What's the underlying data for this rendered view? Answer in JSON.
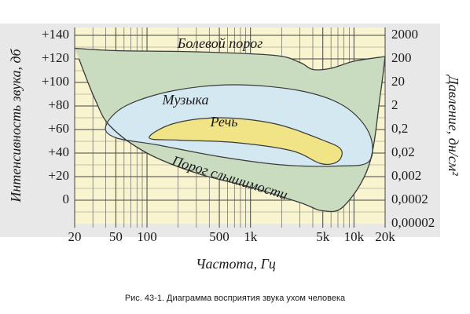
{
  "chart_data": {
    "type": "area",
    "y_label": "Интенсивность звука, дб",
    "y2_label": "Давление, дн/см²",
    "x_label": "Частота, Гц",
    "caption": "Рис. 43-1.  Диаграмма восприятия звука ухом человека",
    "xlog": true,
    "y2log": true,
    "xlim": [
      20,
      20000
    ],
    "ylim": [
      -20,
      140
    ],
    "y2lim": [
      2e-05,
      2000
    ],
    "xticks": [
      20,
      50,
      100,
      500,
      {
        "value": 1000,
        "label": "1k"
      },
      {
        "value": 5000,
        "label": "5k"
      },
      {
        "value": 10000,
        "label": "10k"
      },
      {
        "value": 20000,
        "label": "20k"
      }
    ],
    "xgrid": [
      30,
      40,
      60,
      70,
      80,
      90,
      200,
      300,
      400,
      600,
      700,
      800,
      900,
      2000,
      3000,
      4000,
      6000,
      7000,
      8000,
      9000
    ],
    "yticks": [
      0,
      {
        "value": 20,
        "label": "+20"
      },
      {
        "value": 40,
        "label": "+40"
      },
      {
        "value": 60,
        "label": "+60"
      },
      {
        "value": 80,
        "label": "+80"
      },
      {
        "value": 100,
        "label": "+100"
      },
      {
        "value": 120,
        "label": "+120"
      },
      {
        "value": 140,
        "label": "+140"
      }
    ],
    "ygrid": [
      -10,
      10,
      30,
      50,
      70,
      90,
      110,
      130
    ],
    "y2ticks": [
      {
        "value": 2e-05,
        "label": "0,00002"
      },
      {
        "value": 0.0002,
        "label": "0,0002"
      },
      {
        "value": 0.002,
        "label": "0,002"
      },
      {
        "value": 0.02,
        "label": "0,02"
      },
      {
        "value": 0.2,
        "label": "0,2"
      },
      2,
      20,
      200,
      2000
    ],
    "grid": true,
    "region_color": "#c9dcc0",
    "series": [
      {
        "name": "Болевой порог",
        "color": "#3a3a3a",
        "x": [
          20,
          50,
          300,
          1700,
          3000,
          4000,
          6000,
          10000,
          20000
        ],
        "values": [
          129,
          127,
          126,
          123,
          117,
          111,
          112,
          118,
          122
        ]
      },
      {
        "name": "Порог слышимости",
        "color": "#3a3a3a",
        "x": [
          22,
          31,
          44,
          100,
          300,
          1000,
          3000,
          5000,
          8000,
          14000,
          18000,
          20000
        ],
        "values": [
          120,
          87,
          63,
          40,
          23,
          11,
          -2,
          -9,
          -5,
          30,
          90,
          122
        ]
      },
      {
        "name": "Музыка",
        "color": "#d3e8f0",
        "x": [
          40,
          62,
          180,
          700,
          3000,
          8000,
          14000,
          14000,
          7000,
          2000,
          500,
          125,
          50
        ],
        "values": [
          63,
          80,
          93,
          98,
          93,
          80,
          57,
          33,
          29,
          30,
          37,
          47,
          53
        ]
      },
      {
        "name": "Речь",
        "color": "#f1e487",
        "x": [
          105,
          180,
          500,
          1700,
          5000,
          7500,
          7000,
          4800,
          2500,
          700,
          200
        ],
        "values": [
          53,
          65,
          70,
          65,
          51,
          43,
          33,
          31,
          42,
          49,
          51
        ]
      }
    ]
  }
}
